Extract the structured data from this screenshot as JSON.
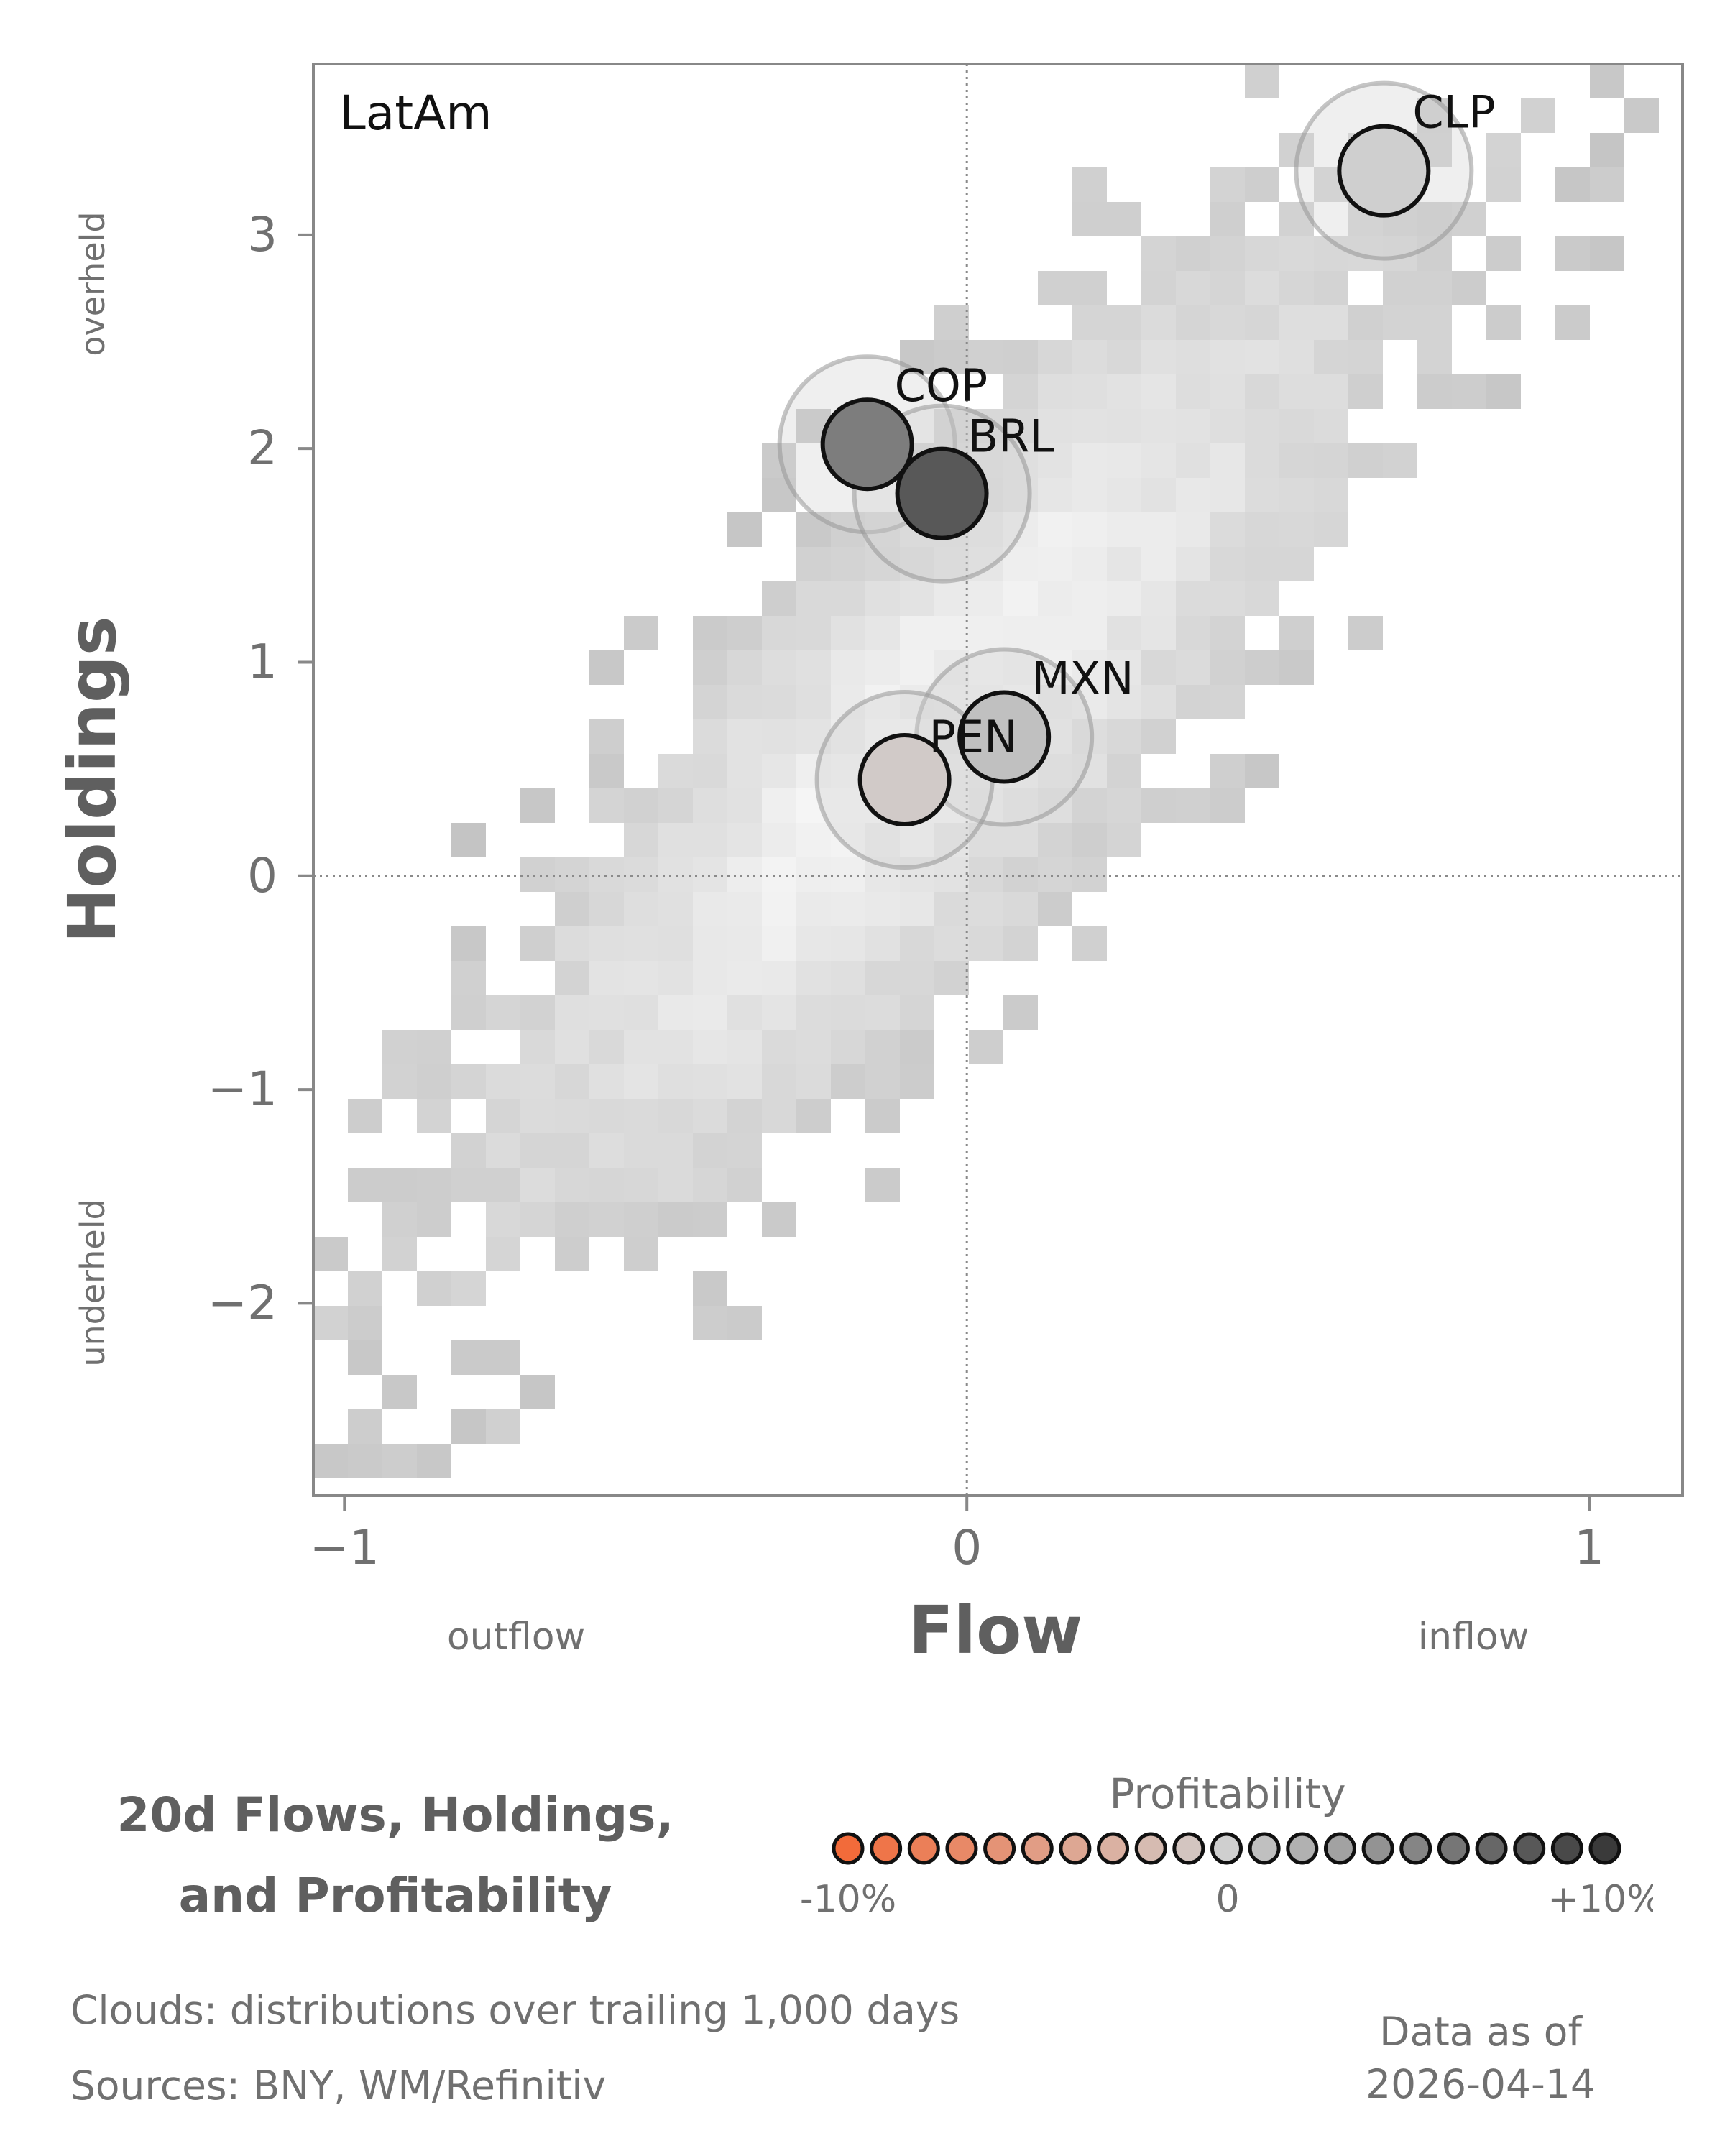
{
  "chart_data": {
    "type": "scatter",
    "panel_label": "LatAm",
    "xlabel": "Flow",
    "ylabel": "Holdings",
    "x_side_labels": {
      "left": "outflow",
      "right": "inflow"
    },
    "y_side_labels": {
      "top": "overheld",
      "bottom": "underheld"
    },
    "xlim": [
      -1.05,
      1.15
    ],
    "ylim": [
      -2.9,
      3.8
    ],
    "xticks": [
      -1,
      0,
      1
    ],
    "xtick_labels": [
      "−1",
      "0",
      "1"
    ],
    "yticks": [
      -2,
      -1,
      0,
      1,
      2,
      3
    ],
    "ytick_labels": [
      "−2",
      "−1",
      "0",
      "1",
      "2",
      "3"
    ],
    "reference_lines": {
      "x": 0,
      "y": 0,
      "style": "dotted"
    },
    "grid": false,
    "background": "2D histogram cloud (gray density) of trailing distributions",
    "points": [
      {
        "label": "CLP",
        "x": 0.67,
        "y": 3.3,
        "profitability": 0.0
      },
      {
        "label": "COP",
        "x": -0.16,
        "y": 2.02,
        "profitability": 5.5
      },
      {
        "label": "BRL",
        "x": -0.04,
        "y": 1.79,
        "profitability": 8.0
      },
      {
        "label": "MXN",
        "x": 0.06,
        "y": 0.65,
        "profitability": 1.0
      },
      {
        "label": "PEN",
        "x": -0.1,
        "y": 0.45,
        "profitability": -0.5
      }
    ],
    "colorbar": {
      "title": "Profitability",
      "min_label": "-10%",
      "mid_label": "0",
      "max_label": "+10%",
      "range": [
        -10,
        10
      ],
      "low_color": "#f26b3a",
      "mid_color": "#cfcfcf",
      "high_color": "#3a3a3a"
    }
  },
  "footer": {
    "title_line1": "20d Flows, Holdings,",
    "title_line2": "and Profitability",
    "clouds_note": "Clouds:  distributions over trailing 1,000 days",
    "sources_note": "Sources:  BNY, WM/Refinitiv",
    "asof_label": "Data as of",
    "asof_date": "2026-04-14"
  }
}
